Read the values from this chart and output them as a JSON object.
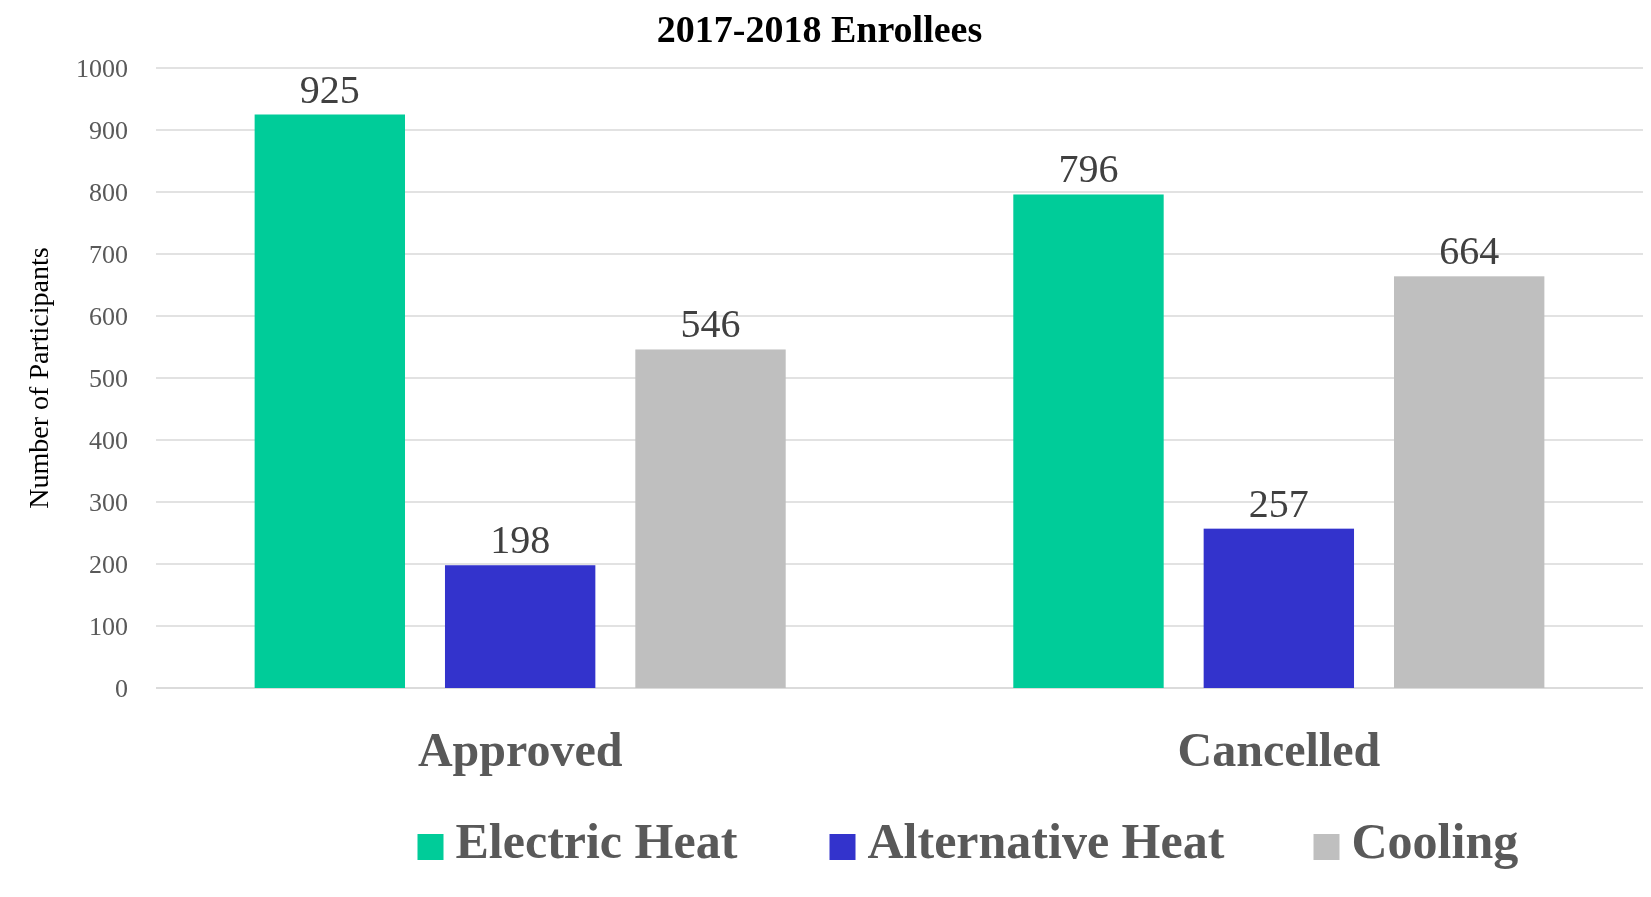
{
  "chart_data": {
    "type": "bar",
    "title": "2017-2018 Enrollees",
    "ylabel": "Number of Participants",
    "categories": [
      "Approved",
      "Cancelled"
    ],
    "series": [
      {
        "name": "Electric Heat",
        "color": "#00cc99",
        "values": [
          925,
          796
        ]
      },
      {
        "name": "Alternative Heat",
        "color": "#3333cc",
        "values": [
          198,
          257
        ]
      },
      {
        "name": "Cooling",
        "color": "#bfbfbf",
        "values": [
          546,
          664
        ]
      }
    ],
    "ylim": [
      0,
      1000
    ],
    "yticks": [
      0,
      100,
      200,
      300,
      400,
      500,
      600,
      700,
      800,
      900,
      1000
    ],
    "grid": "y",
    "data_labels": true,
    "legend": "bottom"
  }
}
